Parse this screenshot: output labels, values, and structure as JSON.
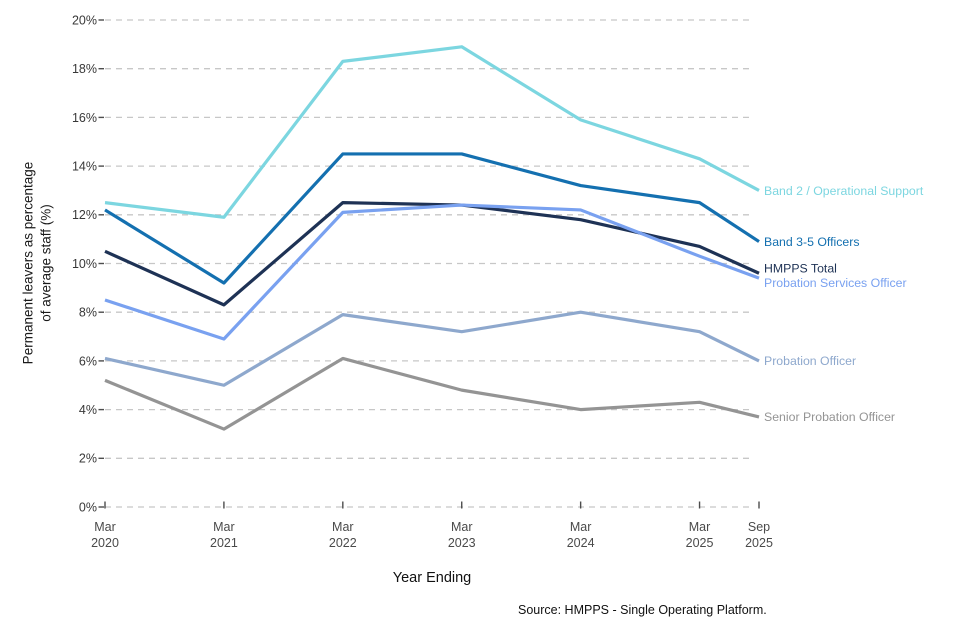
{
  "chart": {
    "y_axis_title_line1": "Permanent leavers as percentage",
    "y_axis_title_line2": "of average staff (%)",
    "x_axis_title": "Year Ending",
    "source": "Source: HMPPS - Single Operating Platform."
  },
  "chart_data": {
    "type": "line",
    "title": "",
    "xlabel": "Year Ending",
    "ylabel": "Permanent leavers as percentage of average staff (%)",
    "categories": [
      "Mar 2020",
      "Mar 2021",
      "Mar 2022",
      "Mar 2023",
      "Mar 2024",
      "Mar 2025",
      "Sep 2025"
    ],
    "x_tick_labels": [
      [
        "Mar",
        "2020"
      ],
      [
        "Mar",
        "2021"
      ],
      [
        "Mar",
        "2022"
      ],
      [
        "Mar",
        "2023"
      ],
      [
        "Mar",
        "2024"
      ],
      [
        "Mar",
        "2025"
      ],
      [
        "Sep",
        "2025"
      ]
    ],
    "x_offsets_years": [
      0,
      1,
      2,
      3,
      4,
      5,
      5.5
    ],
    "y_ticks": [
      0,
      2,
      4,
      6,
      8,
      10,
      12,
      14,
      16,
      18,
      20
    ],
    "y_tick_suffix": "%",
    "ylim": [
      0,
      20
    ],
    "grid": "dashed-horizontal",
    "legend_position": "right-end-labels",
    "grid_color": "#c7c7c7",
    "tick_color": "#4d4d4d",
    "y_label_color": "#383838",
    "x_label_color": "#4a4a4a",
    "series": [
      {
        "name": "Band 2 / Operational Support",
        "color": "#7cd6e0",
        "values": [
          12.5,
          11.9,
          18.3,
          18.9,
          15.9,
          14.3,
          13.0
        ]
      },
      {
        "name": "Band 3-5 Officers",
        "color": "#1470b0",
        "values": [
          12.2,
          9.2,
          14.5,
          14.5,
          13.2,
          12.5,
          10.9
        ]
      },
      {
        "name": "HMPPS Total",
        "color": "#1e3255",
        "values": [
          10.5,
          8.3,
          12.5,
          12.4,
          11.8,
          10.7,
          9.6
        ]
      },
      {
        "name": "Probation Services Officer",
        "color": "#79a1f0",
        "values": [
          8.5,
          6.9,
          12.1,
          12.4,
          12.2,
          10.3,
          9.4
        ]
      },
      {
        "name": "Probation Officer",
        "color": "#8ea8cd",
        "values": [
          6.1,
          5.0,
          7.9,
          7.2,
          8.0,
          7.2,
          6.0
        ]
      },
      {
        "name": "Senior Probation Officer",
        "color": "#949494",
        "values": [
          5.2,
          3.2,
          6.1,
          4.8,
          4.0,
          4.3,
          3.7
        ]
      }
    ]
  }
}
